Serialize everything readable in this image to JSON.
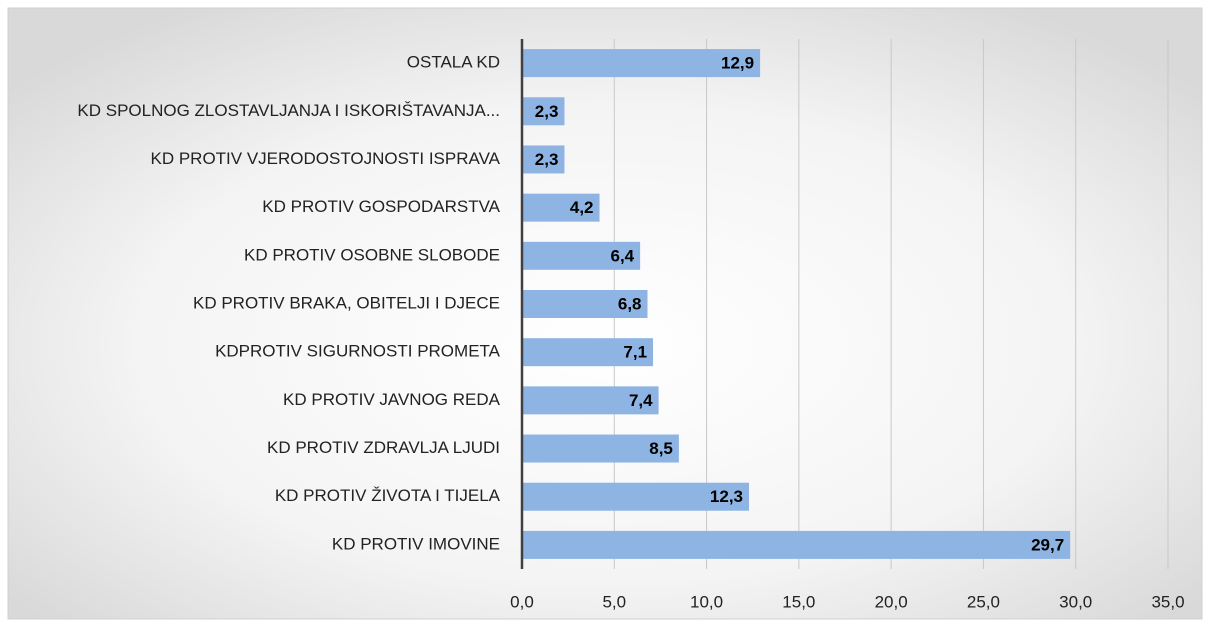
{
  "chart_data": {
    "type": "hbar",
    "categories": [
      "OSTALA KD",
      "KD SPOLNOG ZLOSTAVLJANJA I ISKORIŠTAVANJA...",
      "KD PROTIV VJERODOSTOJNOSTI ISPRAVA",
      "KD PROTIV GOSPODARSTVA",
      "KD  PROTIV OSOBNE SLOBODE",
      "KD PROTIV BRAKA, OBITELJI I DJECE",
      "KDPROTIV SIGURNOSTI PROMETA",
      "KD PROTIV JAVNOG REDA",
      "KD PROTIV ZDRAVLJA LJUDI",
      "KD PROTIV ŽIVOTA I TIJELA",
      "KD PROTIV IMOVINE"
    ],
    "values": [
      12.9,
      2.3,
      2.3,
      4.2,
      6.4,
      6.8,
      7.1,
      7.4,
      8.5,
      12.3,
      29.7
    ],
    "value_labels": [
      "12,9",
      "2,3",
      "2,3",
      "4,2",
      "6,4",
      "6,8",
      "7,1",
      "7,4",
      "8,5",
      "12,3",
      "29,7"
    ],
    "color": "#8eb4e3",
    "xlim": [
      0,
      35
    ],
    "xticks": [
      {
        "value": 0,
        "label": "0,0"
      },
      {
        "value": 5,
        "label": "5,0"
      },
      {
        "value": 10,
        "label": "10,0"
      },
      {
        "value": 15,
        "label": "15,0"
      },
      {
        "value": 20,
        "label": "20,0"
      },
      {
        "value": 25,
        "label": "25,0"
      },
      {
        "value": 30,
        "label": "30,0"
      },
      {
        "value": 35,
        "label": "35,0"
      }
    ],
    "grid": true
  }
}
